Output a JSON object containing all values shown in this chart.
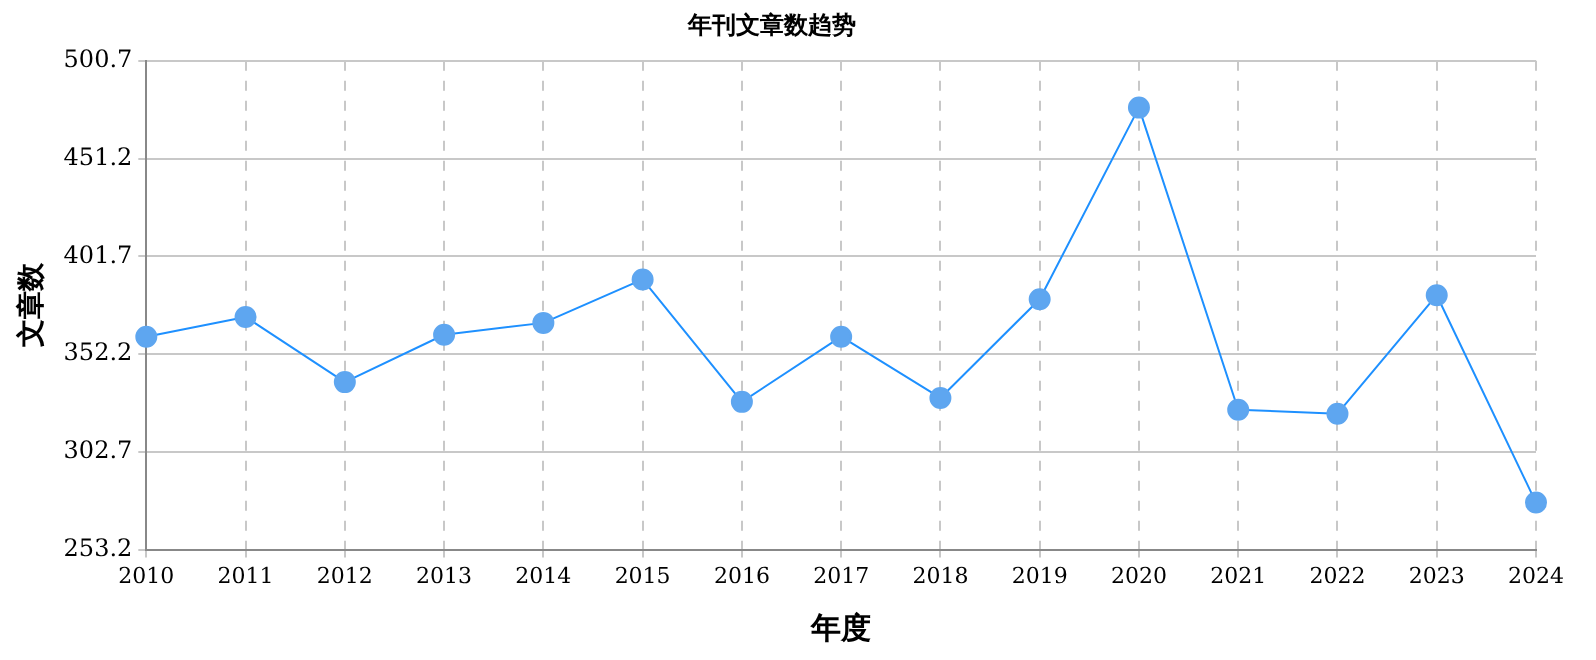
{
  "chart_data": {
    "type": "line",
    "title": "年刊文章数趋势",
    "xlabel": "年度",
    "ylabel": "文章数",
    "categories": [
      "2010",
      "2011",
      "2012",
      "2013",
      "2014",
      "2015",
      "2016",
      "2017",
      "2018",
      "2019",
      "2020",
      "2021",
      "2022",
      "2023",
      "2024"
    ],
    "series": [
      {
        "color": "#1e90ff",
        "values": [
          361,
          371,
          338,
          362,
          368,
          390,
          328,
          361,
          330,
          380,
          477,
          324,
          322,
          382,
          277
        ]
      }
    ],
    "ylim": [
      253.2,
      500.7
    ],
    "yticks": [
      253.2,
      302.7,
      352.2,
      401.7,
      451.2,
      500.7
    ],
    "grid": true,
    "legend": false,
    "marker": "circle",
    "line_style": "solid"
  }
}
